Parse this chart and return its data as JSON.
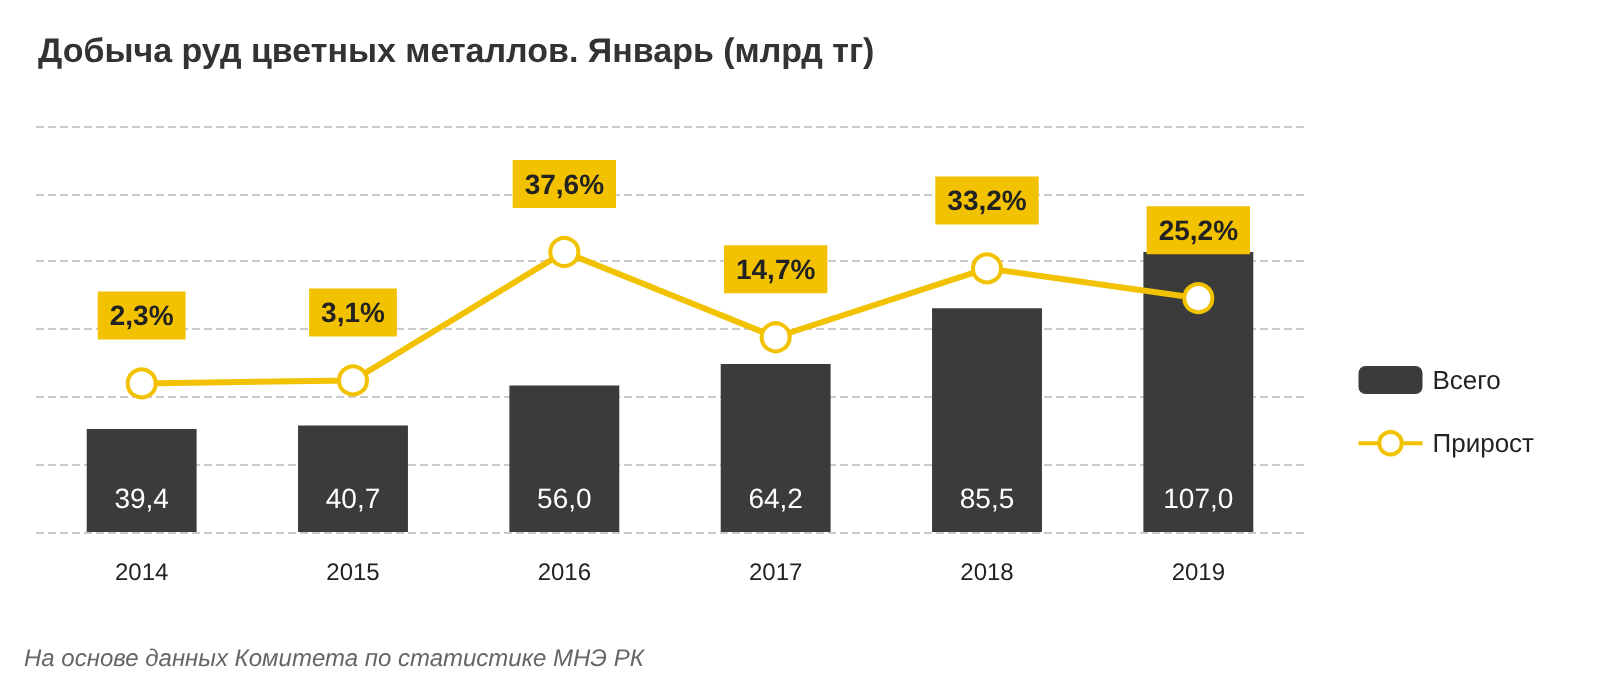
{
  "chart_data": {
    "type": "bar",
    "title": "Добыча руд цветных металлов. Январь (млрд тг)",
    "categories": [
      "2014",
      "2015",
      "2016",
      "2017",
      "2018",
      "2019"
    ],
    "series": [
      {
        "name": "Всего",
        "color": "#3b3b3b",
        "values": [
          39.4,
          40.7,
          56.0,
          64.2,
          85.5,
          107.0
        ],
        "value_labels": [
          "39,4",
          "40,7",
          "56,0",
          "64,2",
          "85,5",
          "107,0"
        ]
      },
      {
        "name": "Прирост",
        "type": "line",
        "axis": "y2",
        "marker": "circle",
        "color": "#f2c200",
        "values": [
          2.3,
          3.1,
          37.6,
          14.7,
          33.2,
          25.2
        ],
        "value_labels": [
          "2,3%",
          "3,1%",
          "37,6%",
          "14,7%",
          "33,2%",
          "25,2%"
        ]
      }
    ],
    "grid": "y",
    "legend": "right",
    "tick_labels": "x",
    "annotations": [
      "На основе данных Комитета по статистике МНЭ РК"
    ]
  }
}
